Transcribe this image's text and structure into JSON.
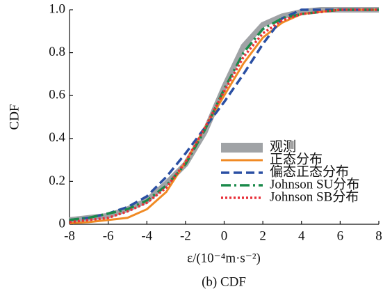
{
  "chart_data": {
    "type": "line",
    "y_label": "CDF",
    "x_label": "ε/(10⁻⁴m·s⁻²)",
    "subtitle": "(b) CDF",
    "x": [
      -8,
      -7,
      -6,
      -5,
      -4,
      -3,
      -2,
      -1,
      0,
      1,
      2,
      3,
      4,
      5,
      6,
      7,
      8
    ],
    "series": [
      {
        "name": "观测",
        "color": "#a0a3a6",
        "style": "solid",
        "width": 8,
        "values": [
          0.02,
          0.03,
          0.04,
          0.07,
          0.11,
          0.19,
          0.28,
          0.43,
          0.64,
          0.83,
          0.93,
          0.97,
          0.99,
          1,
          1,
          1,
          1
        ]
      },
      {
        "name": "正态分布",
        "color": "#f08a24",
        "style": "solid",
        "width": 3,
        "values": [
          0.005,
          0.01,
          0.02,
          0.03,
          0.07,
          0.15,
          0.29,
          0.45,
          0.6,
          0.75,
          0.87,
          0.94,
          0.98,
          0.99,
          1,
          1,
          1
        ]
      },
      {
        "name": "偏态正态分布",
        "color": "#2a4fa3",
        "style": "dashed",
        "width": 3.5,
        "values": [
          0.02,
          0.03,
          0.05,
          0.08,
          0.13,
          0.22,
          0.33,
          0.45,
          0.57,
          0.7,
          0.84,
          0.96,
          1,
          1,
          1,
          1,
          1
        ]
      },
      {
        "name": "Johnson SU分布",
        "color": "#1a8a4a",
        "style": "dashdot",
        "width": 3.5,
        "values": [
          0.02,
          0.03,
          0.05,
          0.07,
          0.11,
          0.18,
          0.28,
          0.44,
          0.63,
          0.8,
          0.91,
          0.96,
          0.98,
          0.99,
          1,
          1,
          1
        ]
      },
      {
        "name": "Johnson SB分布",
        "color": "#e8313a",
        "style": "dotted",
        "width": 3.5,
        "values": [
          0.01,
          0.02,
          0.03,
          0.06,
          0.1,
          0.17,
          0.29,
          0.45,
          0.62,
          0.78,
          0.89,
          0.95,
          0.98,
          0.99,
          1,
          1,
          1
        ]
      }
    ],
    "xlim": [
      -8,
      8
    ],
    "xticks": [
      -8,
      -6,
      -4,
      -2,
      0,
      2,
      4,
      6,
      8
    ],
    "ylim": [
      0,
      1
    ],
    "yticks": [
      0,
      0.2,
      0.4,
      0.6,
      0.8,
      {
        "value": 1,
        "label": "1.0"
      }
    ],
    "grid": false
  }
}
